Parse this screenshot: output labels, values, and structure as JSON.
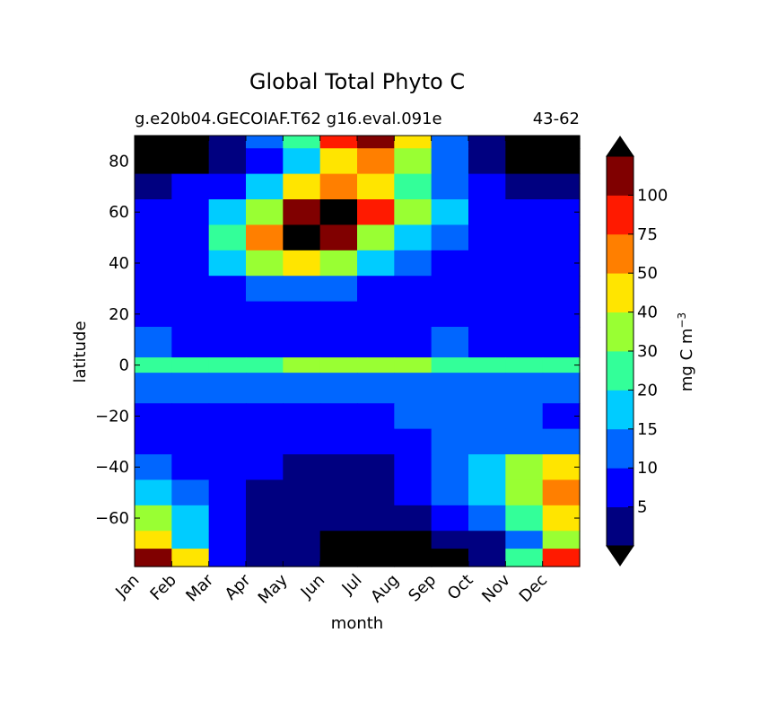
{
  "chart_data": {
    "type": "heatmap",
    "title": "Global Total Phyto C",
    "subtitle_left": "g.e20b04.GECOIAF.T62 g16.eval.091e",
    "subtitle_right": "43-62",
    "xlabel": "month",
    "ylabel": "latitude",
    "x_ticks": [
      "Jan",
      "Feb",
      "Mar",
      "Apr",
      "May",
      "Jun",
      "Jul",
      "Aug",
      "Sep",
      "Oct",
      "Nov",
      "Dec"
    ],
    "ylim": [
      -79,
      90
    ],
    "y_ticks": [
      80,
      60,
      40,
      20,
      0,
      -20,
      -40,
      -60
    ],
    "y_tick_labels": [
      "80",
      "60",
      "40",
      "20",
      "0",
      "−20",
      "−40",
      "−60"
    ],
    "colorbar": {
      "label": "mg C m",
      "label_exponent": "−3",
      "extend": "both",
      "levels": [
        0,
        5,
        10,
        15,
        20,
        30,
        40,
        50,
        75,
        100,
        125
      ],
      "tick_labels": [
        "5",
        "10",
        "15",
        "20",
        "30",
        "40",
        "50",
        "75",
        "100"
      ],
      "colors": [
        "#000000",
        "#000080",
        "#0000ff",
        "#0066ff",
        "#00ccff",
        "#33ff99",
        "#99ff33",
        "#ffe500",
        "#ff7f00",
        "#ff1a00",
        "#800000",
        "#000000"
      ]
    },
    "latitude_bands": [
      {
        "lat": [
          85,
          90
        ],
        "levels": [
          0,
          0,
          1,
          3,
          5,
          9,
          10,
          7,
          3,
          1,
          0,
          0
        ]
      },
      {
        "lat": [
          75,
          85
        ],
        "levels": [
          0,
          0,
          1,
          2,
          4,
          7,
          8,
          6,
          3,
          1,
          0,
          0
        ]
      },
      {
        "lat": [
          65,
          75
        ],
        "levels": [
          1,
          2,
          2,
          4,
          7,
          8,
          7,
          5,
          3,
          2,
          1,
          1
        ]
      },
      {
        "lat": [
          55,
          65
        ],
        "levels": [
          2,
          2,
          4,
          6,
          10,
          11,
          9,
          6,
          4,
          2,
          2,
          2
        ]
      },
      {
        "lat": [
          45,
          55
        ],
        "levels": [
          2,
          2,
          5,
          8,
          11,
          10,
          6,
          4,
          3,
          2,
          2,
          2
        ]
      },
      {
        "lat": [
          35,
          45
        ],
        "levels": [
          2,
          2,
          4,
          6,
          7,
          6,
          4,
          3,
          2,
          2,
          2,
          2
        ]
      },
      {
        "lat": [
          25,
          35
        ],
        "levels": [
          2,
          2,
          2,
          3,
          3,
          3,
          2,
          2,
          2,
          2,
          2,
          2
        ]
      },
      {
        "lat": [
          15,
          25
        ],
        "levels": [
          2,
          2,
          2,
          2,
          2,
          2,
          2,
          2,
          2,
          2,
          2,
          2
        ]
      },
      {
        "lat": [
          3,
          15
        ],
        "levels": [
          3,
          2,
          2,
          2,
          2,
          2,
          2,
          2,
          3,
          2,
          2,
          2
        ]
      },
      {
        "lat": [
          -3,
          3
        ],
        "levels": [
          5,
          5,
          5,
          5,
          6,
          6,
          6,
          6,
          5,
          5,
          5,
          5
        ]
      },
      {
        "lat": [
          -15,
          -3
        ],
        "levels": [
          3,
          3,
          3,
          3,
          3,
          3,
          3,
          3,
          3,
          3,
          3,
          3
        ]
      },
      {
        "lat": [
          -25,
          -15
        ],
        "levels": [
          2,
          2,
          2,
          2,
          2,
          2,
          2,
          3,
          3,
          3,
          3,
          2
        ]
      },
      {
        "lat": [
          -35,
          -25
        ],
        "levels": [
          2,
          2,
          2,
          2,
          2,
          2,
          2,
          2,
          3,
          3,
          3,
          3
        ]
      },
      {
        "lat": [
          -45,
          -35
        ],
        "levels": [
          3,
          2,
          2,
          2,
          1,
          1,
          1,
          2,
          3,
          4,
          6,
          7
        ]
      },
      {
        "lat": [
          -55,
          -45
        ],
        "levels": [
          4,
          3,
          2,
          1,
          1,
          1,
          1,
          2,
          3,
          4,
          6,
          8
        ]
      },
      {
        "lat": [
          -65,
          -55
        ],
        "levels": [
          6,
          4,
          2,
          1,
          1,
          1,
          1,
          1,
          2,
          3,
          5,
          7
        ]
      },
      {
        "lat": [
          -72,
          -65
        ],
        "levels": [
          7,
          4,
          2,
          1,
          1,
          0,
          0,
          0,
          1,
          1,
          3,
          6
        ]
      },
      {
        "lat": [
          -79,
          -72
        ],
        "levels": [
          10,
          7,
          2,
          1,
          1,
          0,
          0,
          0,
          0,
          1,
          5,
          9
        ]
      }
    ]
  }
}
